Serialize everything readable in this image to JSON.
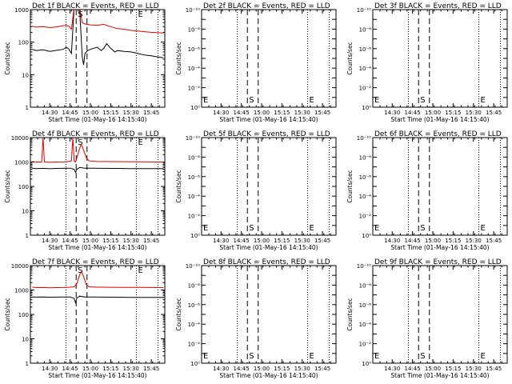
{
  "panel_titles": [
    "Det 1f BLACK = Events, RED = LLD",
    "Det 2f BLACK = Events, RED = LLD",
    "Det 3f BLACK = Events, RED = LLD",
    "Det 4f BLACK = Events, RED = LLD",
    "Det 5f BLACK = Events, RED = LLD",
    "Det 6f BLACK = Events, RED = LLD",
    "Det 7f BLACK = Events, RED = LLD",
    "Det 8f BLACK = Events, RED = LLD",
    "Det 9f BLACK = Events, RED = LLD"
  ],
  "xlabel": "Start Time (01-May-16 14:15:40)",
  "ylabel": "Counts/sec",
  "x_tick_labels": [
    "14:30",
    "14:45",
    "15:00",
    "15:15",
    "15:30",
    "15:45"
  ],
  "empty_y_tick_labels": [
    "10⁻¹⁰",
    "10⁻⁸",
    "10⁻⁶",
    "10⁻⁴",
    "10⁻²",
    "10⁰"
  ],
  "markers": {
    "start": "S",
    "end": "E"
  },
  "colors": {
    "events": "#000000",
    "lld": "#e00000",
    "axes": "#000000"
  },
  "chart_data": [
    {
      "type": "line",
      "title": "Det 1f BLACK = Events, RED = LLD",
      "xlabel": "Start Time (01-May-16 14:15:40)",
      "ylabel": "Counts/sec",
      "yscale": "log",
      "xlim": [
        "14:15:40",
        "15:55"
      ],
      "ylim": [
        1,
        1000
      ],
      "y_tick_labels": [
        "1",
        "10",
        "100",
        "1000"
      ],
      "series": [
        {
          "name": "Events",
          "color": "#000000",
          "points": [
            [
              "14:17",
              60
            ],
            [
              "14:20",
              55
            ],
            [
              "14:25",
              58
            ],
            [
              "14:30",
              52
            ],
            [
              "14:35",
              56
            ],
            [
              "14:40",
              60
            ],
            [
              "14:42",
              70
            ],
            [
              "14:44",
              62
            ],
            [
              "14:46",
              45
            ],
            [
              "14:48",
              1200
            ],
            [
              "14:50",
              1200
            ],
            [
              "14:52",
              1200
            ],
            [
              "14:54",
              35
            ],
            [
              "14:55",
              20
            ],
            [
              "14:56",
              45
            ],
            [
              "14:58",
              55
            ],
            [
              "15:00",
              60
            ],
            [
              "15:05",
              70
            ],
            [
              "15:08",
              55
            ],
            [
              "15:10",
              65
            ],
            [
              "15:12",
              90
            ],
            [
              "15:15",
              65
            ],
            [
              "15:18",
              50
            ],
            [
              "15:20",
              55
            ],
            [
              "15:25",
              52
            ],
            [
              "15:30",
              50
            ],
            [
              "15:35",
              45
            ],
            [
              "15:40",
              40
            ],
            [
              "15:45",
              38
            ],
            [
              "15:50",
              35
            ],
            [
              "15:54",
              33
            ]
          ]
        },
        {
          "name": "LLD",
          "color": "#e00000",
          "points": [
            [
              "14:17",
              310
            ],
            [
              "14:20",
              290
            ],
            [
              "14:25",
              300
            ],
            [
              "14:30",
              280
            ],
            [
              "14:35",
              295
            ],
            [
              "14:40",
              320
            ],
            [
              "14:42",
              330
            ],
            [
              "14:44",
              310
            ],
            [
              "14:46",
              250
            ],
            [
              "14:48",
              1200
            ],
            [
              "14:50",
              1200
            ],
            [
              "14:52",
              1200
            ],
            [
              "14:54",
              400
            ],
            [
              "14:56",
              360
            ],
            [
              "15:00",
              340
            ],
            [
              "15:05",
              330
            ],
            [
              "15:10",
              350
            ],
            [
              "15:15",
              300
            ],
            [
              "15:20",
              260
            ],
            [
              "15:25",
              250
            ],
            [
              "15:30",
              230
            ],
            [
              "15:35",
              220
            ],
            [
              "15:40",
              210
            ],
            [
              "15:45",
              200
            ],
            [
              "15:50",
              195
            ],
            [
              "15:54",
              190
            ]
          ]
        }
      ],
      "markers": [
        {
          "label": "S",
          "x": "14:49:30"
        },
        {
          "label": "E",
          "x": "15:34"
        }
      ],
      "vlines_dashed": [
        "14:49:30",
        "14:57:30"
      ],
      "vlines_dotted": [
        "14:42",
        "15:34",
        "15:50"
      ]
    },
    {
      "type": "line",
      "title": "Det 2f BLACK = Events, RED = LLD",
      "xlabel": "Start Time (01-May-16 14:15:40)",
      "ylabel": "Counts/sec",
      "yscale": "log",
      "xlim": [
        "14:15:40",
        "15:55"
      ],
      "ylim": [
        1,
        1e-10
      ],
      "y_tick_labels": [
        "10⁻¹⁰",
        "10⁻⁸",
        "10⁻⁶",
        "10⁻⁴",
        "10⁻²",
        "10⁰"
      ],
      "series": [],
      "markers": [
        {
          "label": "E",
          "x": "14:15:40"
        },
        {
          "label": "S",
          "x": "14:49:30"
        },
        {
          "label": "E",
          "x": "15:34"
        }
      ],
      "vlines_dashed": [
        "14:49:30",
        "14:57:30"
      ],
      "vlines_dotted": [
        "14:42",
        "15:34",
        "15:50"
      ]
    },
    {
      "type": "line",
      "title": "Det 3f BLACK = Events, RED = LLD",
      "xlabel": "Start Time (01-May-16 14:15:40)",
      "ylabel": "Counts/sec",
      "yscale": "log",
      "xlim": [
        "14:15:40",
        "15:55"
      ],
      "ylim": [
        1,
        1e-10
      ],
      "y_tick_labels": [
        "10⁻¹⁰",
        "10⁻⁸",
        "10⁻⁶",
        "10⁻⁴",
        "10⁻²",
        "10⁰"
      ],
      "series": [],
      "markers": [
        {
          "label": "E",
          "x": "14:15:40"
        },
        {
          "label": "S",
          "x": "14:49:30"
        },
        {
          "label": "E",
          "x": "15:34"
        }
      ],
      "vlines_dashed": [
        "14:49:30",
        "14:57:30"
      ],
      "vlines_dotted": [
        "14:42",
        "15:34",
        "15:50"
      ]
    },
    {
      "type": "line",
      "title": "Det 4f BLACK = Events, RED = LLD",
      "xlabel": "Start Time (01-May-16 14:15:40)",
      "ylabel": "Counts/sec",
      "yscale": "log",
      "xlim": [
        "14:15:40",
        "15:55"
      ],
      "ylim": [
        1,
        10000
      ],
      "y_tick_labels": [
        "1",
        "10",
        "100",
        "1000",
        "10000"
      ],
      "series": [
        {
          "name": "Events",
          "color": "#000000",
          "points": [
            [
              "14:17",
              560
            ],
            [
              "14:20",
              540
            ],
            [
              "14:25",
              550
            ],
            [
              "14:30",
              530
            ],
            [
              "14:35",
              545
            ],
            [
              "14:40",
              550
            ],
            [
              "14:45",
              560
            ],
            [
              "14:48",
              500
            ],
            [
              "14:49",
              380
            ],
            [
              "14:50",
              500
            ],
            [
              "14:52",
              600
            ],
            [
              "14:56",
              560
            ],
            [
              "15:00",
              555
            ],
            [
              "15:10",
              550
            ],
            [
              "15:20",
              545
            ],
            [
              "15:30",
              540
            ],
            [
              "15:40",
              540
            ],
            [
              "15:50",
              535
            ],
            [
              "15:54",
              530
            ]
          ]
        },
        {
          "name": "LLD",
          "color": "#e00000",
          "points": [
            [
              "14:17",
              1050
            ],
            [
              "14:20",
              1000
            ],
            [
              "14:24",
              1000
            ],
            [
              "14:25",
              10000
            ],
            [
              "14:26",
              1000
            ],
            [
              "14:30",
              980
            ],
            [
              "14:35",
              1000
            ],
            [
              "14:40",
              1010
            ],
            [
              "14:44",
              1050
            ],
            [
              "14:46",
              1100
            ],
            [
              "14:47",
              10000
            ],
            [
              "14:48",
              1100
            ],
            [
              "14:49",
              1000
            ],
            [
              "14:50",
              1500
            ],
            [
              "14:52",
              3500
            ],
            [
              "14:53",
              5000
            ],
            [
              "14:54",
              4500
            ],
            [
              "14:55",
              3000
            ],
            [
              "14:57",
              1500
            ],
            [
              "14:59",
              1100
            ],
            [
              "15:05",
              1050
            ],
            [
              "15:15",
              1040
            ],
            [
              "15:25",
              1030
            ],
            [
              "15:35",
              1020
            ],
            [
              "15:45",
              1010
            ],
            [
              "15:54",
              1000
            ]
          ]
        }
      ],
      "markers": [
        {
          "label": "S",
          "x": "14:49:30"
        },
        {
          "label": "E",
          "x": "15:34"
        }
      ],
      "vlines_dashed": [
        "14:49:30",
        "14:57:30"
      ],
      "vlines_dotted": [
        "14:42",
        "15:34",
        "15:50"
      ]
    },
    {
      "type": "line",
      "title": "Det 5f BLACK = Events, RED = LLD",
      "xlabel": "Start Time (01-May-16 14:15:40)",
      "ylabel": "Counts/sec",
      "yscale": "log",
      "xlim": [
        "14:15:40",
        "15:55"
      ],
      "ylim": [
        1,
        1e-10
      ],
      "y_tick_labels": [
        "10⁻¹⁰",
        "10⁻⁸",
        "10⁻⁶",
        "10⁻⁴",
        "10⁻²",
        "10⁰"
      ],
      "series": [],
      "markers": [
        {
          "label": "E",
          "x": "14:15:40"
        },
        {
          "label": "S",
          "x": "14:49:30"
        },
        {
          "label": "E",
          "x": "15:34"
        }
      ],
      "vlines_dashed": [
        "14:49:30",
        "14:57:30"
      ],
      "vlines_dotted": [
        "14:42",
        "15:34",
        "15:50"
      ]
    },
    {
      "type": "line",
      "title": "Det 6f BLACK = Events, RED = LLD",
      "xlabel": "Start Time (01-May-16 14:15:40)",
      "ylabel": "Counts/sec",
      "yscale": "log",
      "xlim": [
        "14:15:40",
        "15:55"
      ],
      "ylim": [
        1,
        1e-10
      ],
      "y_tick_labels": [
        "10⁻¹⁰",
        "10⁻⁸",
        "10⁻⁶",
        "10⁻⁴",
        "10⁻²",
        "10⁰"
      ],
      "series": [],
      "markers": [
        {
          "label": "E",
          "x": "14:15:40"
        },
        {
          "label": "S",
          "x": "14:49:30"
        },
        {
          "label": "E",
          "x": "15:34"
        }
      ],
      "vlines_dashed": [
        "14:49:30",
        "14:57:30"
      ],
      "vlines_dotted": [
        "14:42",
        "15:34",
        "15:50"
      ]
    },
    {
      "type": "line",
      "title": "Det 7f BLACK = Events, RED = LLD",
      "xlabel": "Start Time (01-May-16 14:15:40)",
      "ylabel": "Counts/sec",
      "yscale": "log",
      "xlim": [
        "14:15:40",
        "15:55"
      ],
      "ylim": [
        1,
        10000
      ],
      "y_tick_labels": [
        "1",
        "10",
        "100",
        "1000",
        "10000"
      ],
      "series": [
        {
          "name": "Events",
          "color": "#000000",
          "points": [
            [
              "14:17",
              520
            ],
            [
              "14:20",
              510
            ],
            [
              "14:25",
              515
            ],
            [
              "14:30",
              505
            ],
            [
              "14:35",
              510
            ],
            [
              "14:40",
              515
            ],
            [
              "14:45",
              520
            ],
            [
              "14:48",
              450
            ],
            [
              "14:49",
              300
            ],
            [
              "14:50",
              470
            ],
            [
              "14:52",
              560
            ],
            [
              "14:56",
              520
            ],
            [
              "15:00",
              515
            ],
            [
              "15:10",
              510
            ],
            [
              "15:20",
              505
            ],
            [
              "15:30",
              500
            ],
            [
              "15:40",
              500
            ],
            [
              "15:50",
              495
            ],
            [
              "15:54",
              490
            ]
          ]
        },
        {
          "name": "LLD",
          "color": "#e00000",
          "points": [
            [
              "14:17",
              1300
            ],
            [
              "14:20",
              1250
            ],
            [
              "14:25",
              1260
            ],
            [
              "14:30",
              1240
            ],
            [
              "14:35",
              1250
            ],
            [
              "14:40",
              1260
            ],
            [
              "14:45",
              1300
            ],
            [
              "14:48",
              1350
            ],
            [
              "14:50",
              1800
            ],
            [
              "14:52",
              4000
            ],
            [
              "14:53",
              5500
            ],
            [
              "14:54",
              5000
            ],
            [
              "14:55",
              3500
            ],
            [
              "14:57",
              1700
            ],
            [
              "14:59",
              1350
            ],
            [
              "15:05",
              1300
            ],
            [
              "15:15",
              1290
            ],
            [
              "15:25",
              1280
            ],
            [
              "15:35",
              1270
            ],
            [
              "15:45",
              1260
            ],
            [
              "15:54",
              1250
            ]
          ]
        }
      ],
      "markers": [
        {
          "label": "S",
          "x": "14:49:30"
        },
        {
          "label": "E",
          "x": "15:34"
        }
      ],
      "vlines_dashed": [
        "14:49:30",
        "14:57:30"
      ],
      "vlines_dotted": [
        "14:42",
        "15:34",
        "15:50"
      ]
    },
    {
      "type": "line",
      "title": "Det 8f BLACK = Events, RED = LLD",
      "xlabel": "Start Time (01-May-16 14:15:40)",
      "ylabel": "Counts/sec",
      "yscale": "log",
      "xlim": [
        "14:15:40",
        "15:55"
      ],
      "ylim": [
        1,
        1e-10
      ],
      "y_tick_labels": [
        "10⁻¹⁰",
        "10⁻⁸",
        "10⁻⁶",
        "10⁻⁴",
        "10⁻²",
        "10⁰"
      ],
      "series": [],
      "markers": [
        {
          "label": "E",
          "x": "14:15:40"
        },
        {
          "label": "S",
          "x": "14:49:30"
        },
        {
          "label": "E",
          "x": "15:34"
        }
      ],
      "vlines_dashed": [
        "14:49:30",
        "14:57:30"
      ],
      "vlines_dotted": [
        "14:42",
        "15:34",
        "15:50"
      ]
    },
    {
      "type": "line",
      "title": "Det 9f BLACK = Events, RED = LLD",
      "xlabel": "Start Time (01-May-16 14:15:40)",
      "ylabel": "Counts/sec",
      "yscale": "log",
      "xlim": [
        "14:15:40",
        "15:55"
      ],
      "ylim": [
        1,
        1e-10
      ],
      "y_tick_labels": [
        "10⁻¹⁰",
        "10⁻⁸",
        "10⁻⁶",
        "10⁻⁴",
        "10⁻²",
        "10⁰"
      ],
      "series": [],
      "markers": [
        {
          "label": "E",
          "x": "14:15:40"
        },
        {
          "label": "S",
          "x": "14:49:30"
        },
        {
          "label": "E",
          "x": "15:34"
        }
      ],
      "vlines_dashed": [
        "14:49:30",
        "14:57:30"
      ],
      "vlines_dotted": [
        "14:42",
        "15:34",
        "15:50"
      ]
    }
  ]
}
